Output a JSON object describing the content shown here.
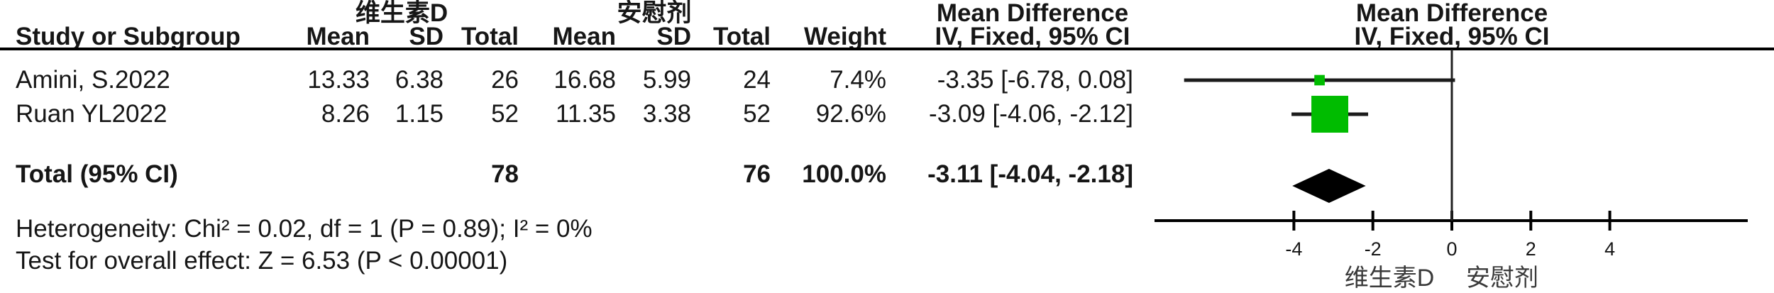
{
  "table": {
    "group_headers": {
      "experimental": "维生素D",
      "control": "安慰剂",
      "mean_difference": "Mean Difference"
    },
    "headers": {
      "study": "Study or Subgroup",
      "mean": "Mean",
      "sd": "SD",
      "total": "Total",
      "weight": "Weight",
      "iv_fixed": "IV, Fixed, 95% CI"
    },
    "rows": [
      {
        "study": "Amini, S.2022",
        "mean_e": "13.33",
        "sd_e": "6.38",
        "total_e": "26",
        "mean_c": "16.68",
        "sd_c": "5.99",
        "total_c": "24",
        "weight": "7.4%",
        "ci": "-3.35 [-6.78, 0.08]"
      },
      {
        "study": "Ruan YL2022",
        "mean_e": "8.26",
        "sd_e": "1.15",
        "total_e": "52",
        "mean_c": "11.35",
        "sd_c": "3.38",
        "total_c": "52",
        "weight": "92.6%",
        "ci": "-3.09 [-4.06, -2.12]"
      }
    ],
    "total_row": {
      "study": "Total (95% CI)",
      "total_e": "78",
      "total_c": "76",
      "weight": "100.0%",
      "ci": "-3.11 [-4.04, -2.18]"
    }
  },
  "footer": {
    "heterogeneity": "Heterogeneity: Chi² = 0.02, df = 1 (P = 0.89); I² = 0%",
    "overall_effect": "Test for overall effect: Z = 6.53 (P < 0.00001)"
  },
  "chart_data": {
    "type": "forest",
    "effect_measure": "Mean Difference",
    "model": "IV, Fixed, 95% CI",
    "x_ticks": [
      -4,
      -2,
      0,
      2,
      4
    ],
    "x_tick_labels": [
      "-4",
      "-2",
      "0",
      "2",
      "4"
    ],
    "xlim": [
      -7.5,
      7.5
    ],
    "vertical_line_at": 0,
    "favours_labels": [
      "维生素D",
      "安慰剂"
    ],
    "studies": [
      {
        "name": "Amini, S.2022",
        "md": -3.35,
        "ci_low": -6.78,
        "ci_high": 0.08,
        "weight_pct": 7.4
      },
      {
        "name": "Ruan YL2022",
        "md": -3.09,
        "ci_low": -4.06,
        "ci_high": -2.12,
        "weight_pct": 92.6
      }
    ],
    "total": {
      "md": -3.11,
      "ci_low": -4.04,
      "ci_high": -2.18,
      "weight_pct": 100.0
    },
    "marker_color": "#00bc00",
    "diamond_color": "#000000",
    "heterogeneity": {
      "chi2": 0.02,
      "df": 1,
      "p": 0.89,
      "i2_pct": 0
    },
    "overall_effect": {
      "z": 6.53,
      "p": "< 0.00001"
    }
  }
}
